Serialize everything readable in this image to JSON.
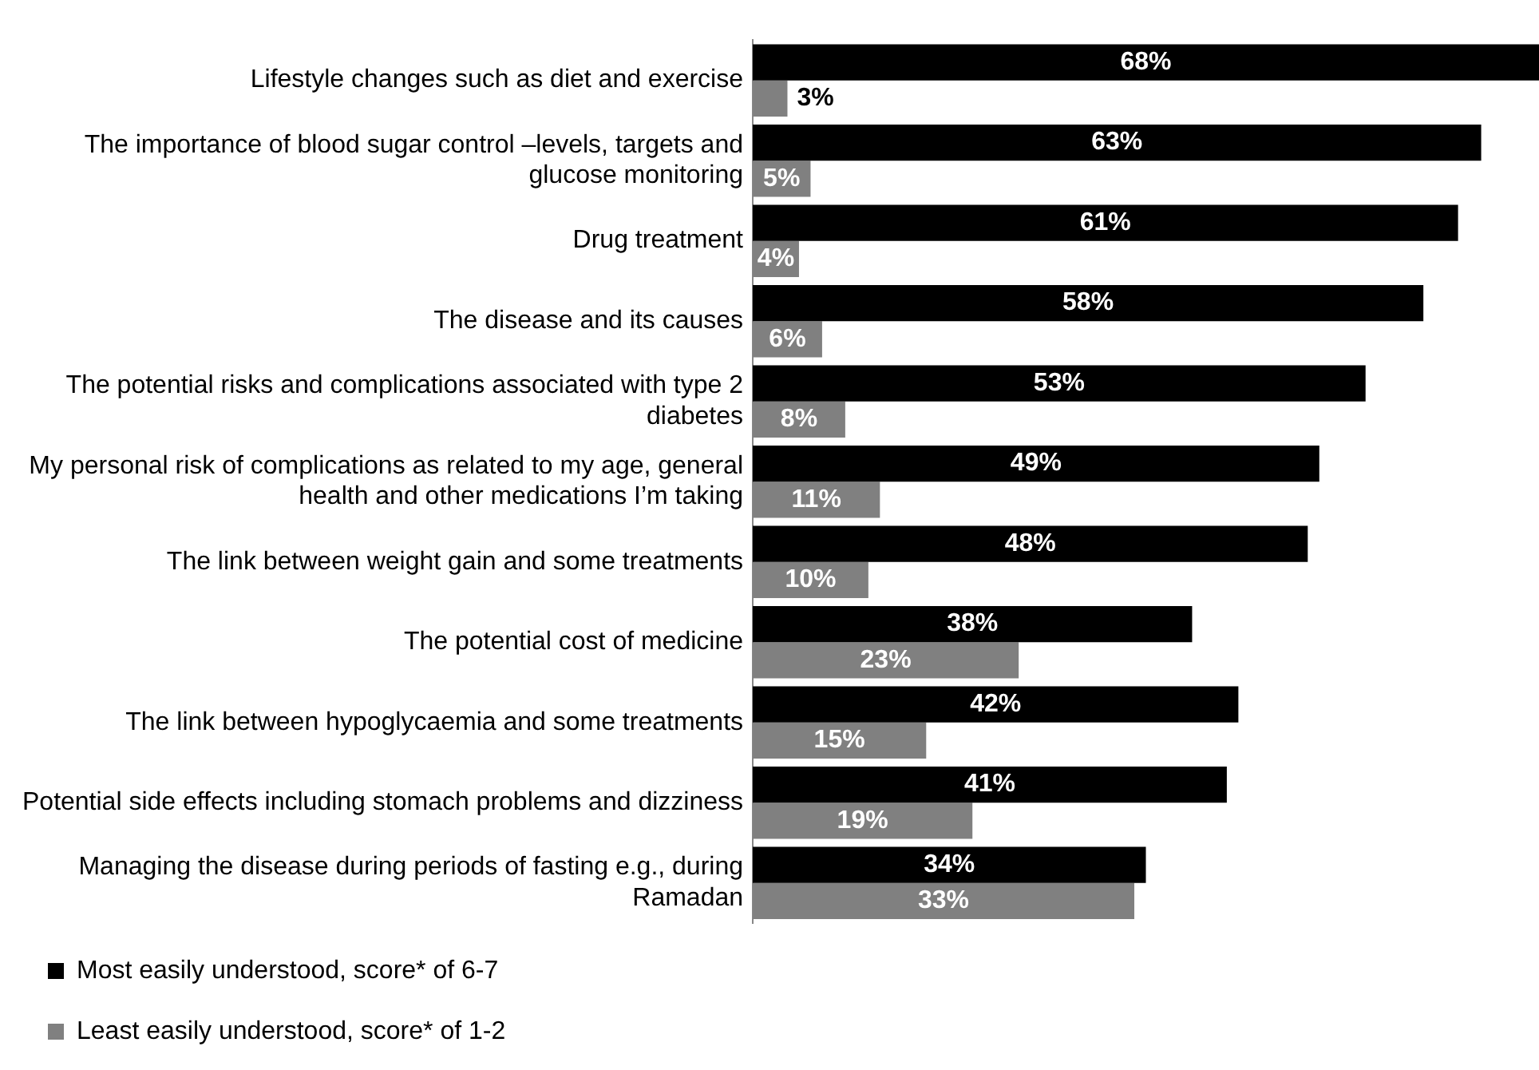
{
  "chart_data": {
    "type": "bar",
    "orientation": "horizontal",
    "categories": [
      "Lifestyle changes such as diet and exercise",
      "The importance of blood sugar control –levels, targets and glucose monitoring",
      "Drug treatment",
      "The disease and its causes",
      "The potential risks and complications associated with type 2 diabetes",
      "My personal risk of complications as related to my age, general health and other medications I’m taking",
      "The link between weight gain and some treatments",
      "The potential cost of medicine",
      "The link between hypoglycaemia and some treatments",
      "Potential side effects including stomach problems and dizziness",
      "Managing the disease during periods of fasting e.g., during Ramadan"
    ],
    "series": [
      {
        "name": "Most easily understood, score* of 6-7",
        "color": "#000000",
        "values": [
          68,
          63,
          61,
          58,
          53,
          49,
          48,
          38,
          42,
          41,
          34
        ],
        "value_labels": [
          "68%",
          "63%",
          "61%",
          "58%",
          "53%",
          "49%",
          "48%",
          "38%",
          "42%",
          "41%",
          "34%"
        ]
      },
      {
        "name": "Least easily understood, score* of 1-2",
        "color": "#808080",
        "values": [
          3,
          5,
          4,
          6,
          8,
          11,
          10,
          23,
          15,
          19,
          33
        ],
        "value_labels": [
          "3%",
          "5%",
          "4%",
          "6%",
          "8%",
          "11%",
          "10%",
          "23%",
          "15%",
          "19%",
          "33%"
        ]
      }
    ],
    "legend": "bottom",
    "grid": false,
    "tick_labels": "y"
  }
}
